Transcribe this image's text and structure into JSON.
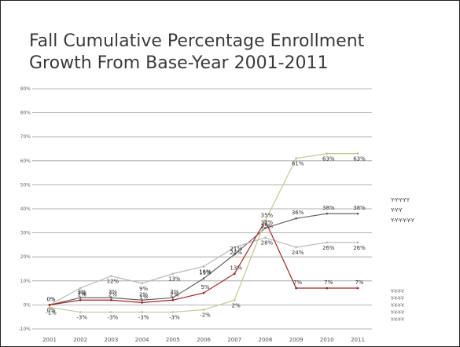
{
  "chart_data": {
    "type": "line",
    "title_lines": [
      "Fall Cumulative Percentage Enrollment",
      "Growth From Base-Year 2001-2011"
    ],
    "xlabel": "",
    "ylabel": "",
    "categories": [
      "2001",
      "2002",
      "2003",
      "2004",
      "2005",
      "2006",
      "2007",
      "2008",
      "2009",
      "2010",
      "2011"
    ],
    "y_ticks": [
      "-10%",
      "0%",
      "10%",
      "20%",
      "30%",
      "40%",
      "50%",
      "60%",
      "70%",
      "80%",
      "90%"
    ],
    "ylim": [
      -10,
      90
    ],
    "grid": true,
    "series": [
      {
        "name": "",
        "color": "#666666",
        "values": [
          0,
          3,
          3,
          2,
          3,
          11,
          21,
          32,
          36,
          38,
          38
        ],
        "labels": [
          "0%",
          "3%",
          "3%",
          "2%",
          "3%",
          "11%",
          "21%",
          "32%",
          "36%",
          "38%",
          "38%"
        ]
      },
      {
        "name": "",
        "color": "#bbbbbb",
        "values": [
          0,
          7,
          12,
          9,
          13,
          16,
          24,
          28,
          24,
          26,
          26
        ],
        "labels": [
          "0%",
          "7%",
          "12%",
          "9%",
          "13%",
          "16%",
          "24%",
          "28%",
          "24%",
          "26%",
          "26%"
        ]
      },
      {
        "name": "",
        "color": "#aa2222",
        "values": [
          0,
          2,
          2,
          1,
          2,
          5,
          13,
          35,
          7,
          7,
          7
        ],
        "labels": [
          "0%",
          "2%",
          "2%",
          "1%",
          "2%",
          "5%",
          "13%",
          "35%",
          "7%",
          "7%",
          "7%"
        ]
      },
      {
        "name": "",
        "color": "#c2c98a",
        "values": [
          -1,
          -3,
          -3,
          -3,
          -3,
          -2,
          2,
          35,
          61,
          63,
          63
        ],
        "labels": [
          "-1%",
          "-3%",
          "-3%",
          "-3%",
          "-3%",
          "-2%",
          "2%",
          "35%",
          "61%",
          "63%",
          "63%"
        ]
      }
    ],
    "legend": {
      "placement": "right",
      "entries": [
        "Y-Y-Y-YY",
        "Y-Y-Y",
        "Y-Y-Y-Y-Y-Y"
      ]
    },
    "note": [
      "Y-Y-Y-Y",
      "Y-Y-Y-Y",
      "Y-Y-Y-Y",
      "Y-Y-Y-Y",
      "Y-Y-Y-Y"
    ]
  }
}
